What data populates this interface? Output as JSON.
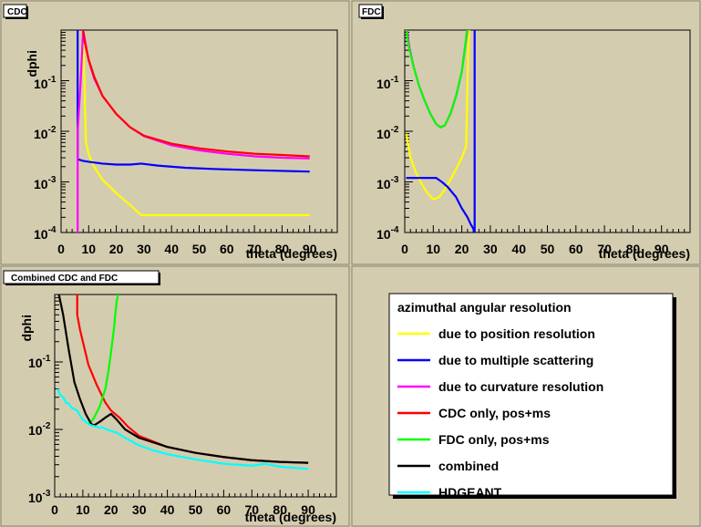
{
  "colors": {
    "background": "#d4ccaf",
    "position": "#ffff00",
    "multiple_scattering": "#0000ff",
    "curvature": "#ff00ff",
    "cdc_only": "#ff0000",
    "fdc_only": "#00ff00",
    "combined": "#000000",
    "hdgeant": "#00ffff"
  },
  "legend": {
    "title": "azimuthal angular resolution",
    "entries": [
      {
        "label": "due to position resolution",
        "color": "#ffff00"
      },
      {
        "label": "due to multiple scattering",
        "color": "#0000ff"
      },
      {
        "label": "due to curvature resolution",
        "color": "#ff00ff"
      },
      {
        "label": "CDC only, pos+ms",
        "color": "#ff0000"
      },
      {
        "label": "FDC only, pos+ms",
        "color": "#00ff00"
      },
      {
        "label": "combined",
        "color": "#000000"
      },
      {
        "label": "HDGEANT",
        "color": "#00ffff"
      }
    ]
  },
  "chart_data": [
    {
      "type": "line",
      "title": "CDC",
      "xlabel": "theta (degrees)",
      "ylabel": "dphi",
      "xlim": [
        0,
        100
      ],
      "ylim": [
        0.0001,
        1
      ],
      "yscale": "log",
      "xticks": [
        0,
        10,
        20,
        30,
        40,
        50,
        60,
        70,
        80,
        90
      ],
      "series": [
        {
          "color": "#ffff00",
          "x": [
            8,
            9,
            10,
            12,
            15,
            20,
            25,
            29,
            35,
            50,
            70,
            90
          ],
          "y": [
            1,
            0.006,
            0.0035,
            0.002,
            0.0011,
            0.0006,
            0.00035,
            0.00022,
            0.00022,
            0.00022,
            0.00022,
            0.00022
          ]
        },
        {
          "color": "#0000ff",
          "x": [
            6,
            6,
            8,
            10,
            15,
            20,
            25,
            29,
            35,
            45,
            55,
            70,
            90
          ],
          "y": [
            1,
            0.0028,
            0.0026,
            0.0025,
            0.0023,
            0.0022,
            0.0022,
            0.0023,
            0.0021,
            0.0019,
            0.0018,
            0.0017,
            0.0016
          ]
        },
        {
          "color": "#ff00ff",
          "x": [
            6,
            6,
            7,
            8,
            10,
            12,
            15,
            20,
            25,
            30,
            40,
            50,
            60,
            70,
            80,
            90
          ],
          "y": [
            0.0001,
            0.01,
            0.08,
            1,
            0.25,
            0.11,
            0.05,
            0.022,
            0.012,
            0.008,
            0.0053,
            0.0042,
            0.0036,
            0.0032,
            0.003,
            0.0029
          ]
        },
        {
          "color": "#ff0000",
          "x": [
            8,
            8.5,
            10,
            12,
            15,
            20,
            25,
            30,
            40,
            50,
            60,
            70,
            80,
            90
          ],
          "y": [
            1,
            0.6,
            0.26,
            0.12,
            0.05,
            0.022,
            0.012,
            0.0082,
            0.0057,
            0.0046,
            0.004,
            0.0036,
            0.0034,
            0.0032
          ]
        }
      ]
    },
    {
      "type": "line",
      "title": "FDC",
      "xlabel": "theta (degrees)",
      "ylabel": "",
      "xlim": [
        0,
        100
      ],
      "ylim": [
        0.0001,
        1
      ],
      "yscale": "log",
      "xticks": [
        0,
        10,
        20,
        30,
        40,
        50,
        60,
        70,
        80,
        90
      ],
      "series": [
        {
          "color": "#ffff00",
          "x": [
            0.5,
            2,
            4,
            6,
            8,
            10,
            12,
            14,
            16,
            18,
            20,
            21.5,
            22,
            22.5
          ],
          "y": [
            0.009,
            0.003,
            0.0015,
            0.0009,
            0.0006,
            0.00045,
            0.0005,
            0.0007,
            0.0011,
            0.0018,
            0.003,
            0.005,
            0.1,
            1
          ]
        },
        {
          "color": "#0000ff",
          "x": [
            0.5,
            5,
            10,
            11,
            13,
            15,
            18,
            20,
            22,
            23,
            24,
            24.5,
            24.5
          ],
          "y": [
            0.0012,
            0.0012,
            0.0012,
            0.0012,
            0.001,
            0.0008,
            0.0005,
            0.0003,
            0.0002,
            0.00015,
            0.00012,
            0.0001,
            1
          ]
        },
        {
          "color": "#ff00ff",
          "x": [
            0.8,
            1.5,
            3,
            5,
            7,
            9,
            11,
            12.5,
            14,
            16,
            18,
            20,
            21,
            22
          ],
          "y": [
            1,
            0.5,
            0.2,
            0.08,
            0.04,
            0.022,
            0.014,
            0.012,
            0.013,
            0.022,
            0.05,
            0.15,
            0.4,
            1
          ]
        },
        {
          "color": "#00ff00",
          "x": [
            0.6,
            1.3,
            3,
            5,
            7,
            9,
            11,
            12.5,
            14,
            16,
            18,
            20,
            21,
            21.8
          ],
          "y": [
            1,
            0.5,
            0.2,
            0.08,
            0.04,
            0.022,
            0.014,
            0.012,
            0.013,
            0.022,
            0.05,
            0.15,
            0.4,
            1
          ]
        }
      ]
    },
    {
      "type": "line",
      "title": "Combined CDC and FDC",
      "xlabel": "theta (degrees)",
      "ylabel": "dphi",
      "xlim": [
        0,
        100
      ],
      "ylim": [
        0.001,
        1
      ],
      "yscale": "log",
      "xticks": [
        0,
        10,
        20,
        30,
        40,
        50,
        60,
        70,
        80,
        90
      ],
      "series": [
        {
          "color": "#ff0000",
          "x": [
            8,
            8,
            9,
            10,
            12,
            15,
            18,
            20,
            23,
            26,
            30,
            40,
            50,
            60,
            70,
            80,
            90
          ],
          "y": [
            1,
            0.5,
            0.3,
            0.2,
            0.09,
            0.045,
            0.025,
            0.019,
            0.015,
            0.011,
            0.008,
            0.0055,
            0.0045,
            0.0039,
            0.0035,
            0.0033,
            0.0032
          ]
        },
        {
          "color": "#00ff00",
          "x": [
            12,
            13,
            14,
            16,
            18,
            19,
            20,
            21,
            21.5,
            22,
            22.5
          ],
          "y": [
            0.012,
            0.013,
            0.015,
            0.022,
            0.04,
            0.07,
            0.14,
            0.3,
            0.5,
            0.8,
            1
          ]
        },
        {
          "color": "#000000",
          "x": [
            1.5,
            3,
            5,
            7,
            9,
            11,
            13,
            14,
            16,
            18,
            20,
            22,
            25,
            30,
            40,
            50,
            60,
            70,
            80,
            90
          ],
          "y": [
            1,
            0.5,
            0.15,
            0.05,
            0.028,
            0.017,
            0.012,
            0.0115,
            0.013,
            0.015,
            0.017,
            0.014,
            0.01,
            0.0075,
            0.0055,
            0.0045,
            0.0039,
            0.0035,
            0.0033,
            0.0032
          ]
        },
        {
          "color": "#00ffff",
          "x": [
            1,
            2,
            3,
            4,
            5,
            6,
            7,
            8,
            9,
            10,
            11,
            12,
            13,
            14,
            15,
            16,
            17,
            18,
            19,
            20,
            22,
            25,
            30,
            35,
            40,
            50,
            60,
            70,
            75,
            80,
            85,
            90
          ],
          "y": [
            0.04,
            0.032,
            0.03,
            0.025,
            0.024,
            0.021,
            0.02,
            0.019,
            0.016,
            0.014,
            0.013,
            0.012,
            0.0115,
            0.0112,
            0.011,
            0.0105,
            0.0108,
            0.0102,
            0.0098,
            0.0095,
            0.009,
            0.0075,
            0.0058,
            0.0049,
            0.0043,
            0.0036,
            0.0031,
            0.0029,
            0.0031,
            0.0028,
            0.0027,
            0.0026
          ]
        }
      ]
    }
  ],
  "tick_labels": {
    "log_top": [
      "10",
      "-1",
      "10",
      "-2",
      "10",
      "-3",
      "10",
      "-4"
    ],
    "log_bottom": [
      "10",
      "-1",
      "10",
      "-2",
      "10",
      "-3"
    ]
  }
}
